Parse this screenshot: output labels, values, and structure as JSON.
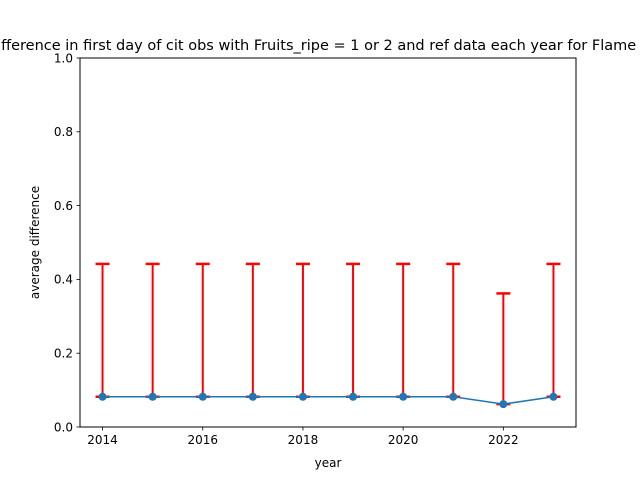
{
  "chart_data": {
    "type": "line",
    "title": "Average difference in first day of cit obs with Fruits_ripe = 1 or 2 and ref data each year for Flame of the Forest",
    "xlabel": "year",
    "ylabel": "average difference",
    "xlim": [
      2013.55,
      2023.45
    ],
    "ylim": [
      0,
      1.0
    ],
    "x_ticks": [
      2014,
      2016,
      2018,
      2020,
      2022
    ],
    "y_ticks": [
      "0.0",
      "0.2",
      "0.4",
      "0.6",
      "0.8",
      "1.0"
    ],
    "grid": false,
    "series": [
      {
        "x": [
          2014,
          2015,
          2016,
          2017,
          2018,
          2019,
          2020,
          2021,
          2022,
          2023
        ],
        "y": [
          0.082,
          0.082,
          0.082,
          0.082,
          0.082,
          0.082,
          0.082,
          0.082,
          0.062,
          0.082
        ],
        "yerr_lower": [
          0.0,
          0.0,
          0.0,
          0.0,
          0.0,
          0.0,
          0.0,
          0.0,
          0.0,
          0.0
        ],
        "yerr_upper": [
          0.36,
          0.36,
          0.36,
          0.36,
          0.36,
          0.36,
          0.36,
          0.36,
          0.3,
          0.36
        ],
        "color": "#1f77b4",
        "errorbar_color": "#ff0000"
      }
    ]
  }
}
